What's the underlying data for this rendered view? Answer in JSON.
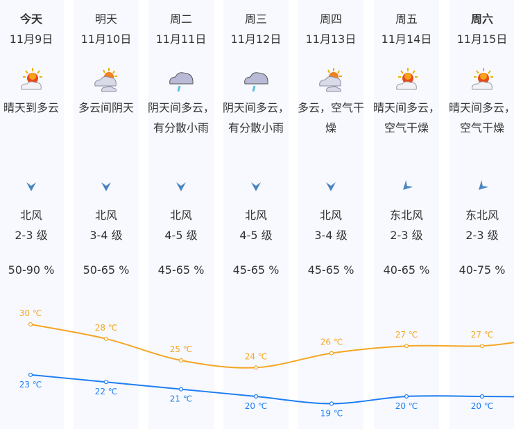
{
  "days": [
    {
      "name": "今天",
      "bold": true,
      "date": "11月9日",
      "icon": "sunny-to-cloudy-icon",
      "desc": "晴天到多云",
      "wind_dir": "北风",
      "wind_icon": "wind-arrow-north-icon",
      "wind_level": "2-3 级",
      "humidity": "50-90 %"
    },
    {
      "name": "明天",
      "bold": false,
      "date": "11月10日",
      "icon": "cloudy-sun-icon",
      "desc": "多云间阴天",
      "wind_dir": "北风",
      "wind_icon": "wind-arrow-north-icon",
      "wind_level": "3-4 级",
      "humidity": "50-65 %"
    },
    {
      "name": "周二",
      "bold": false,
      "date": "11月11日",
      "icon": "rain-cloud-icon",
      "desc": "阴天间多云，有分散小雨",
      "wind_dir": "北风",
      "wind_icon": "wind-arrow-north-icon",
      "wind_level": "4-5 级",
      "humidity": "45-65 %"
    },
    {
      "name": "周三",
      "bold": false,
      "date": "11月12日",
      "icon": "rain-cloud-icon",
      "desc": "阴天间多云，有分散小雨",
      "wind_dir": "北风",
      "wind_icon": "wind-arrow-north-icon",
      "wind_level": "4-5 级",
      "humidity": "45-65 %"
    },
    {
      "name": "周四",
      "bold": false,
      "date": "11月13日",
      "icon": "cloudy-sun-icon",
      "desc": "多云，空气干燥",
      "wind_dir": "北风",
      "wind_icon": "wind-arrow-north-icon",
      "wind_level": "3-4 级",
      "humidity": "45-65 %"
    },
    {
      "name": "周五",
      "bold": false,
      "date": "11月14日",
      "icon": "sunny-to-cloudy-icon",
      "desc": "晴天间多云，空气干燥",
      "wind_dir": "东北风",
      "wind_icon": "wind-arrow-northeast-icon",
      "wind_level": "2-3 级",
      "humidity": "40-65 %"
    },
    {
      "name": "周六",
      "bold": true,
      "date": "11月15日",
      "icon": "sunny-to-cloudy-icon",
      "desc": "晴天间多云，空气干燥",
      "wind_dir": "东北风",
      "wind_icon": "wind-arrow-northeast-icon",
      "wind_level": "2-3 级",
      "humidity": "40-75 %"
    }
  ],
  "chart_data": {
    "type": "line",
    "categories": [
      "11月9日",
      "11月10日",
      "11月11日",
      "11月12日",
      "11月13日",
      "11月14日",
      "11月15日"
    ],
    "unit": "℃",
    "series": [
      {
        "key": "high",
        "values": [
          30,
          28,
          25,
          24,
          26,
          27,
          27
        ],
        "color": "#f5a623"
      },
      {
        "key": "low",
        "values": [
          23,
          22,
          21,
          20,
          19,
          20,
          20
        ],
        "color": "#1e7ef2"
      }
    ],
    "labels": {
      "high": [
        "30 ℃",
        "28 ℃",
        "25 ℃",
        "24 ℃",
        "26 ℃",
        "27 ℃",
        "27 ℃"
      ],
      "low": [
        "23 ℃",
        "22 ℃",
        "21 ℃",
        "20 ℃",
        "19 ℃",
        "20 ℃",
        "20 ℃"
      ]
    }
  }
}
